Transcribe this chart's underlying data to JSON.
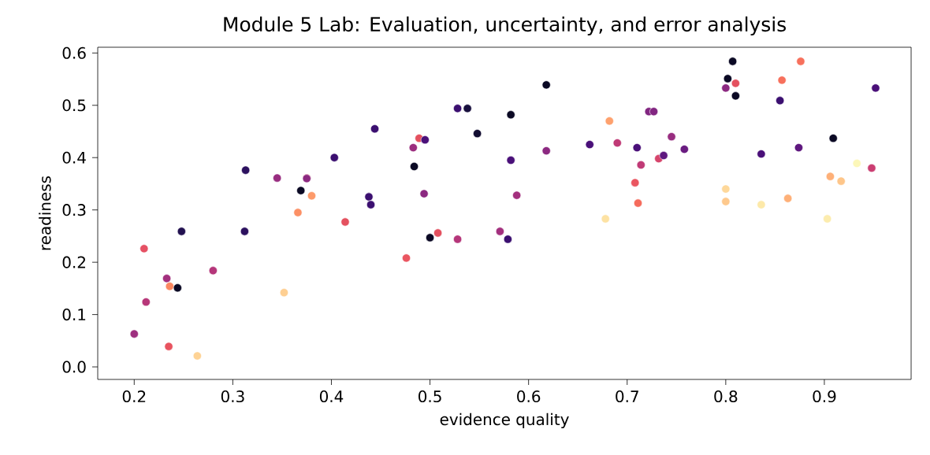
{
  "chart_data": {
    "type": "scatter",
    "title": "Module 5 Lab: Evaluation, uncertainty, and error analysis",
    "xlabel": "evidence quality",
    "ylabel": "readiness",
    "marker": "circle",
    "xlim": [
      0.163,
      0.988
    ],
    "ylim": [
      -0.024,
      0.611
    ],
    "xticks": [
      0.2,
      0.3,
      0.4,
      0.5,
      0.6,
      0.7,
      0.8,
      0.9
    ],
    "yticks": [
      {
        "value": 0,
        "label": "0.0"
      },
      0.1,
      0.2,
      0.3,
      0.4,
      0.5,
      0.6
    ],
    "x": [
      0.2,
      0.21,
      0.212,
      0.233,
      0.236,
      0.235,
      0.244,
      0.248,
      0.264,
      0.28,
      0.312,
      0.313,
      0.345,
      0.352,
      0.366,
      0.375,
      0.375,
      0.369,
      0.38,
      0.403,
      0.414,
      0.438,
      0.44,
      0.444,
      0.476,
      0.484,
      0.489,
      0.483,
      0.495,
      0.494,
      0.508,
      0.5,
      0.528,
      0.528,
      0.538,
      0.548,
      0.571,
      0.579,
      0.582,
      0.582,
      0.588,
      0.618,
      0.618,
      0.662,
      0.682,
      0.678,
      0.69,
      0.708,
      0.711,
      0.71,
      0.714,
      0.722,
      0.727,
      0.732,
      0.737,
      0.745,
      0.758,
      0.807,
      0.802,
      0.81,
      0.8,
      0.81,
      0.8,
      0.8,
      0.836,
      0.836,
      0.857,
      0.855,
      0.863,
      0.874,
      0.876,
      0.903,
      0.906,
      0.909,
      0.917,
      0.933,
      0.948,
      0.952
    ],
    "values": [
      0.063,
      0.226,
      0.124,
      0.169,
      0.154,
      0.039,
      0.151,
      0.259,
      0.021,
      0.184,
      0.259,
      0.376,
      0.361,
      0.142,
      0.295,
      0.361,
      0.36,
      0.337,
      0.327,
      0.4,
      0.277,
      0.325,
      0.31,
      0.455,
      0.208,
      0.383,
      0.437,
      0.419,
      0.434,
      0.331,
      0.256,
      0.247,
      0.244,
      0.494,
      0.494,
      0.446,
      0.259,
      0.244,
      0.482,
      0.395,
      0.328,
      0.539,
      0.413,
      0.425,
      0.47,
      0.283,
      0.428,
      0.352,
      0.313,
      0.419,
      0.386,
      0.488,
      0.488,
      0.398,
      0.404,
      0.44,
      0.416,
      0.584,
      0.551,
      0.542,
      0.533,
      0.518,
      0.34,
      0.316,
      0.31,
      0.407,
      0.548,
      0.509,
      0.322,
      0.419,
      0.584,
      0.283,
      0.364,
      0.437,
      0.355,
      0.389,
      0.38,
      0.533
    ],
    "colors": [
      "#9e2f7f",
      "#e65164",
      "#b73779",
      "#a3307e",
      "#fb8861",
      "#e8535f",
      "#0b0924",
      "#221150",
      "#fed395",
      "#b5367a",
      "#2c115f",
      "#2c115f",
      "#982d80",
      "#fecf92",
      "#fc9065",
      "#f1605d",
      "#8c2981",
      "#0b0924",
      "#fd9a6a",
      "#3b0f70",
      "#e4515f",
      "#3b0f70",
      "#3b0f70",
      "#3b0f70",
      "#ea5661",
      "#0b0924",
      "#e4515f",
      "#9c2e7f",
      "#4a1079",
      "#8c2981",
      "#e3505f",
      "#0b0924",
      "#b5367a",
      "#3b0f70",
      "#180f3d",
      "#120d31",
      "#a3307e",
      "#3b0f70",
      "#0b0924",
      "#4a1079",
      "#a3307e",
      "#0b0924",
      "#8c2981",
      "#4a1079",
      "#fea16e",
      "#fde2a3",
      "#c03a76",
      "#ea5661",
      "#f56b5c",
      "#4a1079",
      "#c03a76",
      "#822681",
      "#822681",
      "#d6456c",
      "#5f187f",
      "#982d80",
      "#6a1c81",
      "#0b0924",
      "#0b0924",
      "#e4515f",
      "#8c2981",
      "#0b0924",
      "#fed89a",
      "#fec98d",
      "#fde9a9",
      "#4a1079",
      "#f7705c",
      "#3b0f70",
      "#feb078",
      "#5f187f",
      "#f7705c",
      "#fcecae",
      "#feb078",
      "#0b0924",
      "#fec68a",
      "#fcf7b9",
      "#cb3e72",
      "#4a1079"
    ]
  }
}
